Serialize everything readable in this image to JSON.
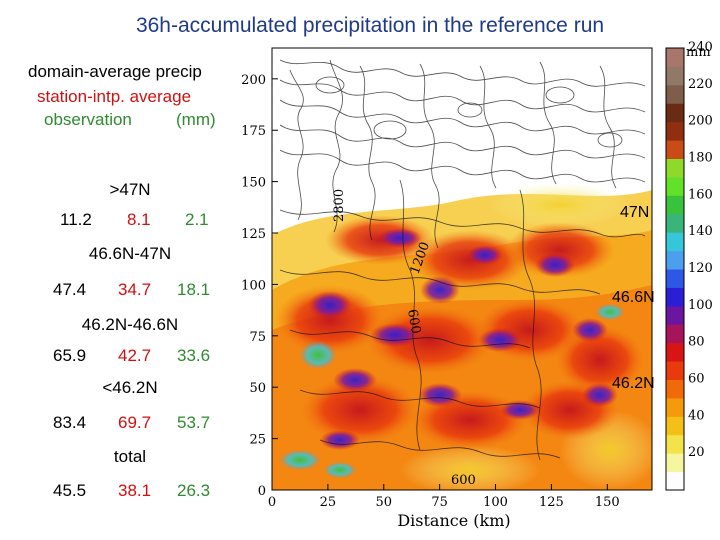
{
  "title": "36h-accumulated precipitation in the reference run",
  "legend_text": {
    "line1": "domain-average precip",
    "line2": "station-intp. average",
    "line3": "observation",
    "line3_unit": "(mm)"
  },
  "stats": [
    {
      "region": ">47N",
      "domain": "11.2",
      "station": "8.1",
      "obs": "2.1"
    },
    {
      "region": "46.6N-47N",
      "domain": "47.4",
      "station": "34.7",
      "obs": "18.1"
    },
    {
      "region": "46.2N-46.6N",
      "domain": "65.9",
      "station": "42.7",
      "obs": "33.6"
    },
    {
      "region": "<46.2N",
      "domain": "83.4",
      "station": "69.7",
      "obs": "53.7"
    },
    {
      "region": "total",
      "domain": "45.5",
      "station": "38.1",
      "obs": "26.3"
    }
  ],
  "latitude_labels": [
    "47N",
    "46.6N",
    "46.2N"
  ],
  "contour_labels": [
    "2800",
    "1200",
    "600",
    "600"
  ],
  "chart_data": {
    "type": "heatmap",
    "title": "36h-accumulated precipitation in the reference run",
    "xlabel": "Distance (km)",
    "ylabel": "",
    "x_ticks": [
      "0",
      "25",
      "50",
      "75",
      "100",
      "125",
      "150"
    ],
    "y_ticks": [
      "0",
      "25",
      "50",
      "75",
      "100",
      "125",
      "150",
      "175",
      "200"
    ],
    "xlim": [
      0,
      170
    ],
    "ylim": [
      0,
      215
    ],
    "colorbar": {
      "unit": "mm",
      "ticks": [
        "20",
        "40",
        "60",
        "80",
        "100",
        "120",
        "140",
        "160",
        "180",
        "200",
        "220",
        "240"
      ],
      "colors": [
        "#fdfdfd",
        "#f6f5a0",
        "#f3e24a",
        "#f4c018",
        "#f59a0a",
        "#f26a08",
        "#e83a0c",
        "#d81414",
        "#a8145a",
        "#6a16a0",
        "#2b1fd6",
        "#2f57e6",
        "#4aa0ee",
        "#35c7d9",
        "#3ab57a",
        "#39c23c",
        "#62e12a",
        "#8ed92a",
        "#c94b16",
        "#8f2f10",
        "#6b2a12",
        "#7e5d4a",
        "#927868",
        "#a8766a"
      ]
    }
  }
}
